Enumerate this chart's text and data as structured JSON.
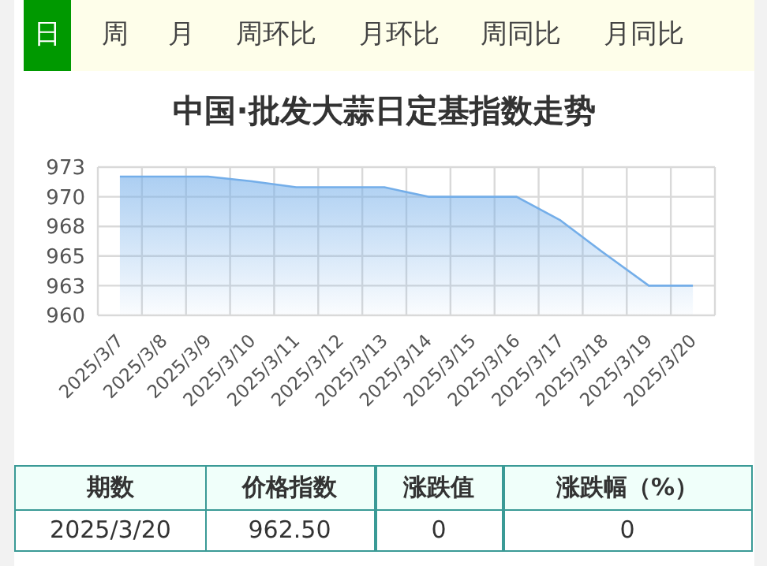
{
  "chart_data": {
    "type": "area",
    "title": "中国·批发大蒜日定基指数走势",
    "categories": [
      "2025/3/7",
      "2025/3/8",
      "2025/3/9",
      "2025/3/10",
      "2025/3/11",
      "2025/3/12",
      "2025/3/13",
      "2025/3/14",
      "2025/3/15",
      "2025/3/16",
      "2025/3/17",
      "2025/3/18",
      "2025/3/19",
      "2025/3/20"
    ],
    "series": [
      {
        "color": "#74aee9",
        "values": [
          971.7,
          971.7,
          971.7,
          971.3,
          970.8,
          970.8,
          970.8,
          970,
          970,
          970,
          968,
          965.2,
          962.5,
          962.5
        ]
      }
    ],
    "ylim": [
      960,
      972.5
    ],
    "yticks": [
      960,
      {
        "value": 962.5,
        "label": "963"
      },
      965,
      {
        "value": 967.5,
        "label": "968"
      },
      970,
      {
        "value": 972.5,
        "label": "973"
      }
    ],
    "grid": true,
    "annotations": [
      "日",
      "周",
      "月",
      "周环比",
      "月环比",
      "周同比",
      "月同比",
      "期数",
      "价格指数",
      "涨跌值",
      "涨跌幅（%）",
      "2025/3/20",
      "962.50",
      "0",
      "0"
    ]
  }
}
